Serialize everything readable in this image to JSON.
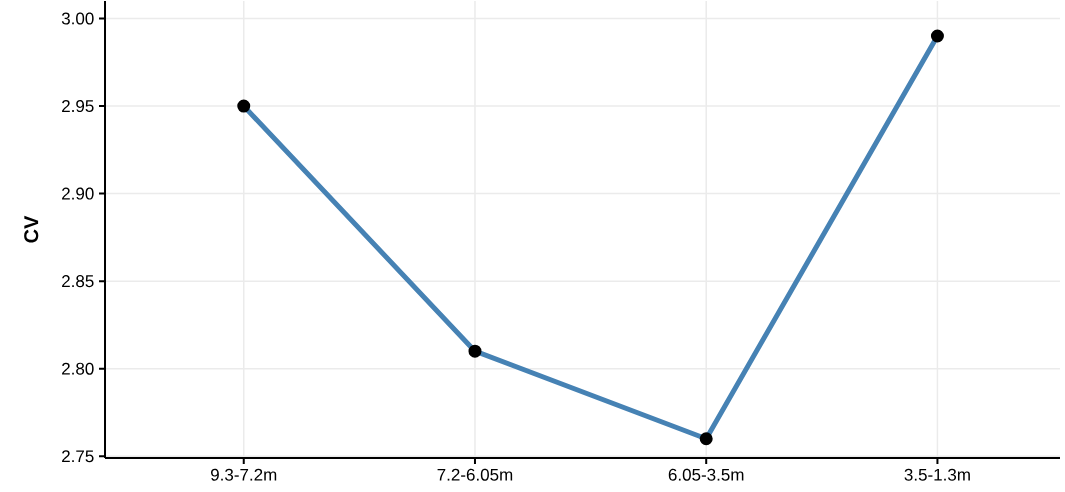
{
  "chart_data": {
    "type": "line",
    "ylabel": "CV",
    "categories": [
      "9.3-7.2m",
      "7.2-6.05m",
      "6.05-3.5m",
      "3.5-1.3m"
    ],
    "values": [
      2.95,
      2.81,
      2.76,
      2.99
    ],
    "color": "#4682b4",
    "marker": "circle",
    "ylim": [
      2.749,
      3.01
    ],
    "yticks": [
      2.75,
      {
        "value": 2.8,
        "label": "2.80"
      },
      2.85,
      {
        "value": 2.9,
        "label": "2.90"
      },
      2.95,
      {
        "value": 3.0,
        "label": "3.00"
      }
    ],
    "grid": true
  }
}
